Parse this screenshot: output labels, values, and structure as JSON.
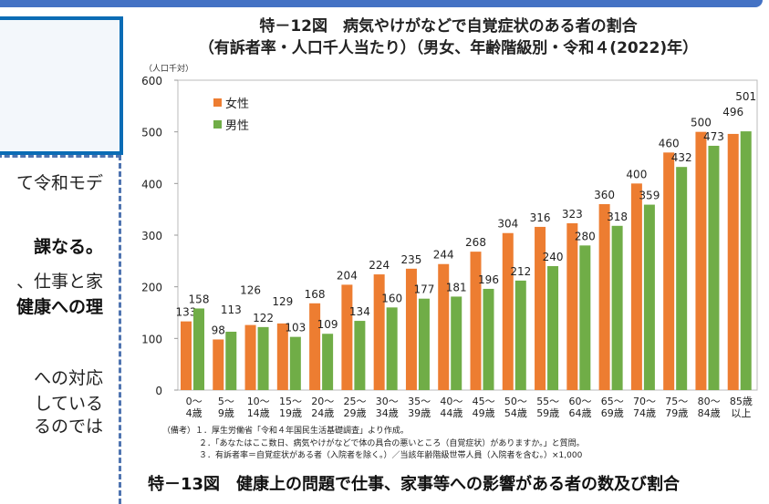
{
  "left_panel": {
    "lines": [
      {
        "text": "て令和モデ",
        "bold": false
      },
      {
        "text": "課なる。",
        "bold": true
      },
      {
        "text": "、仕事と家",
        "bold": false
      },
      {
        "text": "健康への理",
        "bold": true
      },
      {
        "text": "への対応",
        "bold": false
      },
      {
        "text": "している",
        "bold": false
      },
      {
        "text": "るのでは",
        "bold": false
      }
    ]
  },
  "figure12": {
    "title_line1": "特－12図　病気やけがなどで自覚症状のある者の割合",
    "title_line2": "（有訴者率・人口千人当たり）（男女、年齢階級別・令和４(2022)年）",
    "notes": [
      "（備考）１．厚生労働省「令和４年国民生活基礎調査」より作成。",
      "２．「あなたはここ数日、病気やけがなどで体の具合の悪いところ（自覚症状）がありますか。」と質問。",
      "３．有訴者率＝自覚症状がある者（入院者を除く。）／当該年齢階級世帯人員（入院者を含む。）×1,000"
    ]
  },
  "figure13": {
    "title": "特－13図　健康上の問題で仕事、家事等への影響がある者の数及び割合"
  },
  "chart_data": {
    "type": "bar",
    "ylabel": "（人口千対）",
    "ylim": [
      0,
      600
    ],
    "yticks": [
      "0",
      "100",
      "200",
      "300",
      "400",
      "500",
      "600"
    ],
    "grid": false,
    "legend_placement": "top-left",
    "categories": [
      [
        "0～",
        "4歳"
      ],
      [
        "5～",
        "9歳"
      ],
      [
        "10～",
        "14歳"
      ],
      [
        "15～",
        "19歳"
      ],
      [
        "20～",
        "24歳"
      ],
      [
        "25～",
        "29歳"
      ],
      [
        "30～",
        "34歳"
      ],
      [
        "35～",
        "39歳"
      ],
      [
        "40～",
        "44歳"
      ],
      [
        "45～",
        "49歳"
      ],
      [
        "50～",
        "54歳"
      ],
      [
        "55～",
        "59歳"
      ],
      [
        "60～",
        "64歳"
      ],
      [
        "65～",
        "69歳"
      ],
      [
        "70～",
        "74歳"
      ],
      [
        "75～",
        "79歳"
      ],
      [
        "80～",
        "84歳"
      ],
      [
        "85歳",
        "以上"
      ]
    ],
    "series": [
      {
        "name": "女性",
        "color": "#ed7d31",
        "values": [
          133,
          98,
          126,
          129,
          168,
          204,
          224,
          235,
          244,
          268,
          304,
          316,
          323,
          360,
          400,
          460,
          500,
          496
        ]
      },
      {
        "name": "男性",
        "color": "#70ad47",
        "values": [
          158,
          113,
          122,
          103,
          109,
          134,
          160,
          177,
          181,
          196,
          212,
          240,
          280,
          318,
          359,
          432,
          473,
          501
        ]
      }
    ]
  }
}
